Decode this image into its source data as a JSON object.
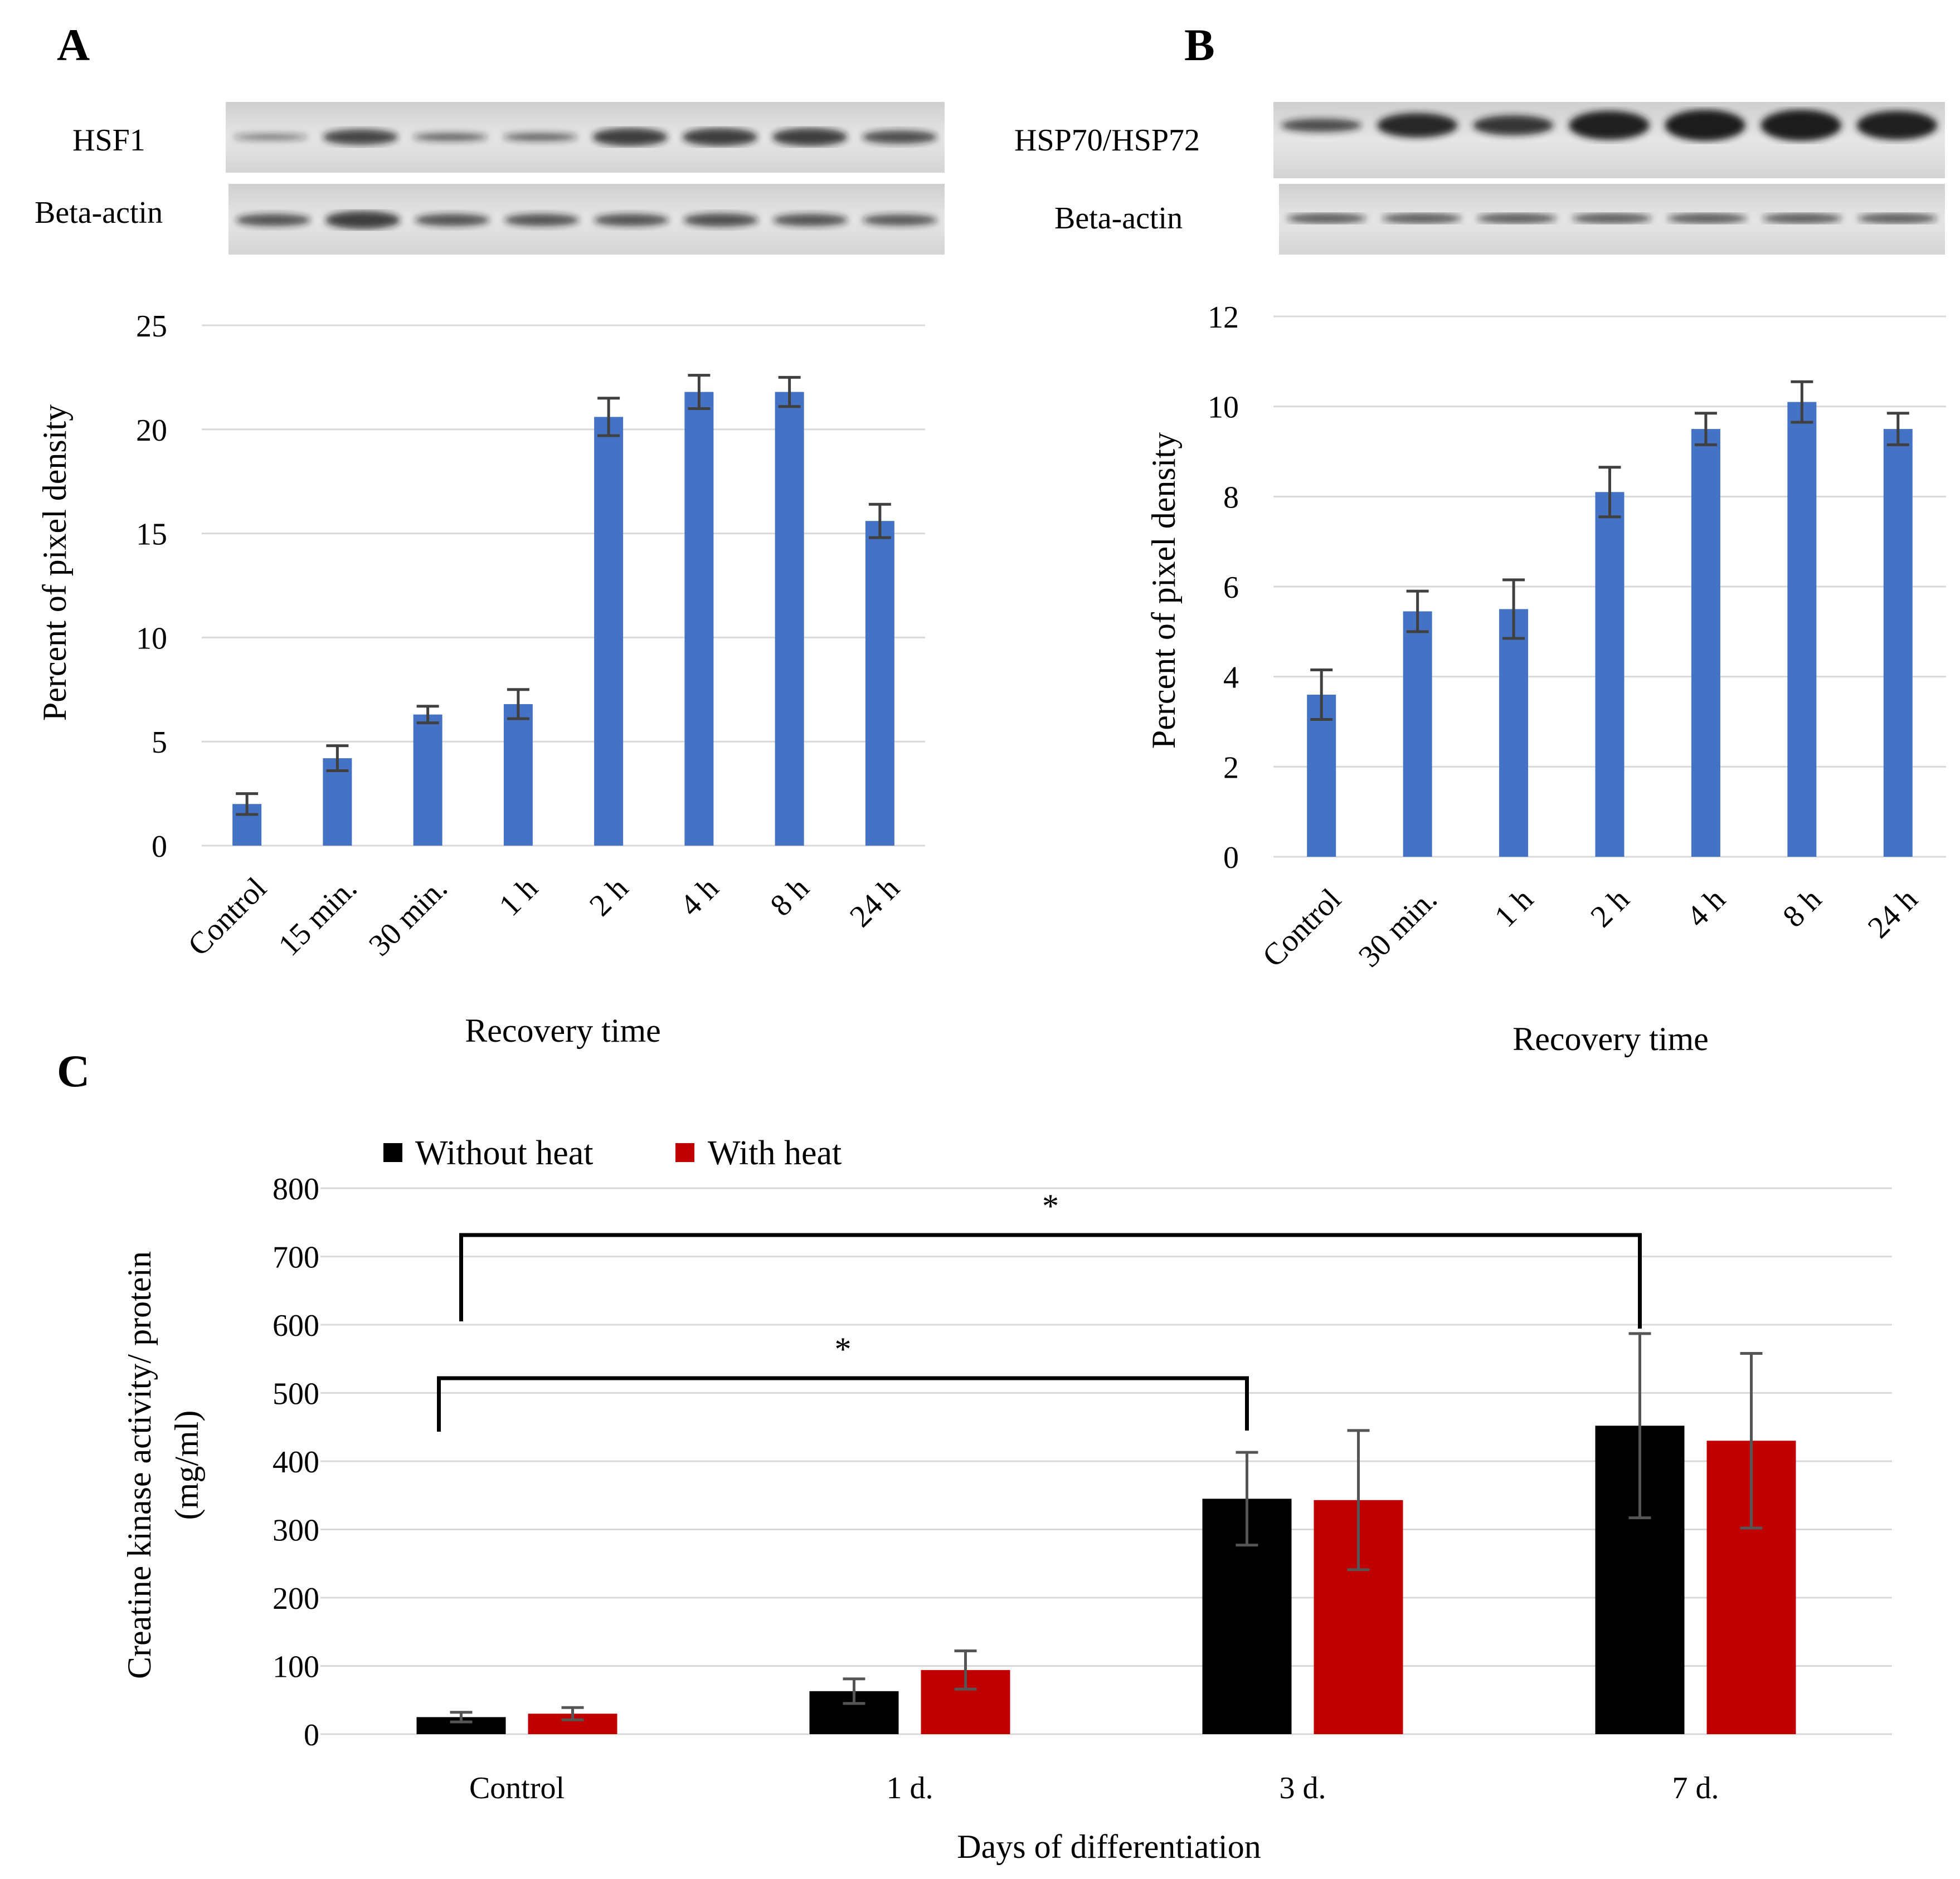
{
  "panels": [
    {
      "letter": "A",
      "blot_labels": [
        "HSF1",
        "Beta-actin"
      ]
    },
    {
      "letter": "B",
      "blot_labels": [
        "HSP70/HSP72",
        "Beta-actin"
      ]
    },
    {
      "letter": "C"
    }
  ],
  "colors": {
    "blue": "#4472C4",
    "black": "#000000",
    "red": "#C00000",
    "grid": "#d9d9d9",
    "err": "#404040"
  },
  "chart_data": [
    {
      "type": "bar",
      "id": "A",
      "categories": [
        "Control",
        "15 min.",
        "30 min.",
        "1 h",
        "2 h",
        "4 h",
        "8 h",
        "24 h"
      ],
      "values": [
        2.0,
        4.2,
        6.3,
        6.8,
        20.6,
        21.8,
        21.8,
        15.6
      ],
      "errors": [
        0.5,
        0.6,
        0.4,
        0.7,
        0.9,
        0.8,
        0.7,
        0.8
      ],
      "ylim": [
        0,
        25
      ],
      "yticks": [
        0,
        5,
        10,
        15,
        20,
        25
      ],
      "xlabel": "Recovery time",
      "ylabel": "Percent of pixel density"
    },
    {
      "type": "bar",
      "id": "B",
      "categories": [
        "Control",
        "30 min.",
        "1 h",
        "2 h",
        "4 h",
        "8 h",
        "24 h"
      ],
      "values": [
        3.6,
        5.45,
        5.5,
        8.1,
        9.5,
        10.1,
        9.5
      ],
      "errors": [
        0.55,
        0.45,
        0.65,
        0.55,
        0.35,
        0.45,
        0.35
      ],
      "ylim": [
        0,
        12
      ],
      "yticks": [
        0,
        2,
        4,
        6,
        8,
        10,
        12
      ],
      "xlabel": "Recovery time",
      "ylabel": "Percent of pixel density"
    },
    {
      "type": "bar",
      "id": "C",
      "categories": [
        "Control",
        "1 d.",
        "3 d.",
        "7 d."
      ],
      "series": [
        {
          "name": "Without heat",
          "values": [
            25,
            63,
            345,
            452
          ],
          "errors": [
            7,
            18,
            68,
            135
          ]
        },
        {
          "name": "With heat",
          "values": [
            30,
            94,
            343,
            430
          ],
          "errors": [
            9,
            28,
            102,
            128
          ]
        }
      ],
      "ylim": [
        0,
        800
      ],
      "yticks": [
        0,
        100,
        200,
        300,
        400,
        500,
        600,
        700,
        800
      ],
      "xlabel": "Days of differentiation",
      "ylabel_lines": [
        "Creatine kinase activity/ protein",
        "(mg/ml)"
      ],
      "annotations": [
        {
          "text": "*",
          "from": "Control",
          "to": "3 d."
        },
        {
          "text": "*",
          "from": "Control",
          "to": "7 d."
        }
      ]
    }
  ]
}
